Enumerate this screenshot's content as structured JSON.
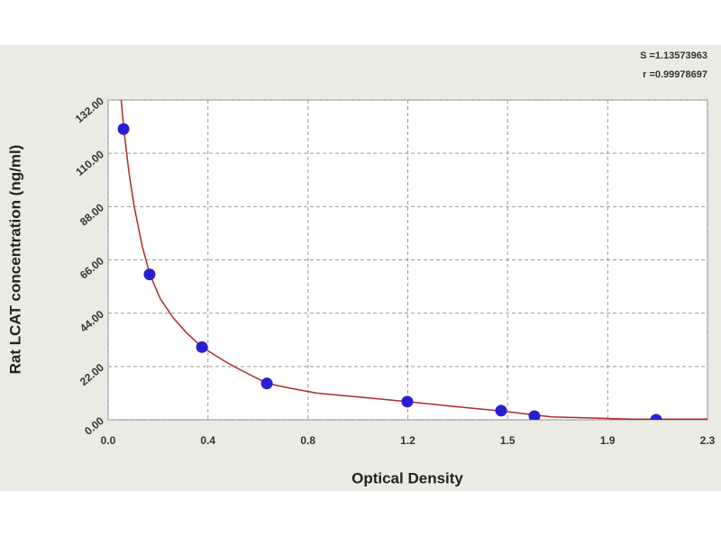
{
  "chart_data": {
    "type": "scatter",
    "xlabel": "Optical Density",
    "ylabel": "Rat LCAT concentration (ng/ml)",
    "annotations": [
      "S =1.13573963",
      "r =0.99978697"
    ],
    "xlim": [
      0,
      2.3
    ],
    "ylim": [
      0,
      132
    ],
    "xticks": [
      {
        "value": 0,
        "label": "0.0"
      },
      {
        "value": 0.383,
        "label": "0.4"
      },
      {
        "value": 0.767,
        "label": "0.8"
      },
      {
        "value": 1.15,
        "label": "1.2"
      },
      {
        "value": 1.533,
        "label": "1.5"
      },
      {
        "value": 1.917,
        "label": "1.9"
      },
      {
        "value": 2.3,
        "label": "2.3"
      }
    ],
    "yticks": [
      {
        "value": 0,
        "label": "0.00"
      },
      {
        "value": 22,
        "label": "22.00"
      },
      {
        "value": 44,
        "label": "44.00"
      },
      {
        "value": 66,
        "label": "66.00"
      },
      {
        "value": 88,
        "label": "88.00"
      },
      {
        "value": 110,
        "label": "110.00"
      },
      {
        "value": 132,
        "label": "132.00"
      }
    ],
    "grid": true,
    "series": [
      {
        "style": "points",
        "color": "#2a1fd0",
        "x": [
          0.059,
          0.159,
          0.36,
          0.609,
          1.148,
          1.508,
          1.636,
          2.103
        ],
        "values": [
          120,
          60,
          30,
          15,
          7.5,
          3.75,
          1.5,
          0
        ]
      },
      {
        "style": "line",
        "color": "#b02a2a",
        "x": [
          0.045,
          0.06,
          0.08,
          0.1,
          0.13,
          0.16,
          0.2,
          0.25,
          0.3,
          0.36,
          0.45,
          0.5,
          0.61,
          0.7,
          0.8,
          1.0,
          1.15,
          1.3,
          1.5,
          1.7,
          2.0,
          2.3
        ],
        "values": [
          138,
          120,
          102,
          88,
          72,
          60,
          50,
          42,
          36,
          30,
          24,
          21,
          15,
          13,
          11,
          9,
          7.5,
          5.8,
          3.7,
          1.2,
          0.3,
          0.3
        ]
      }
    ]
  }
}
